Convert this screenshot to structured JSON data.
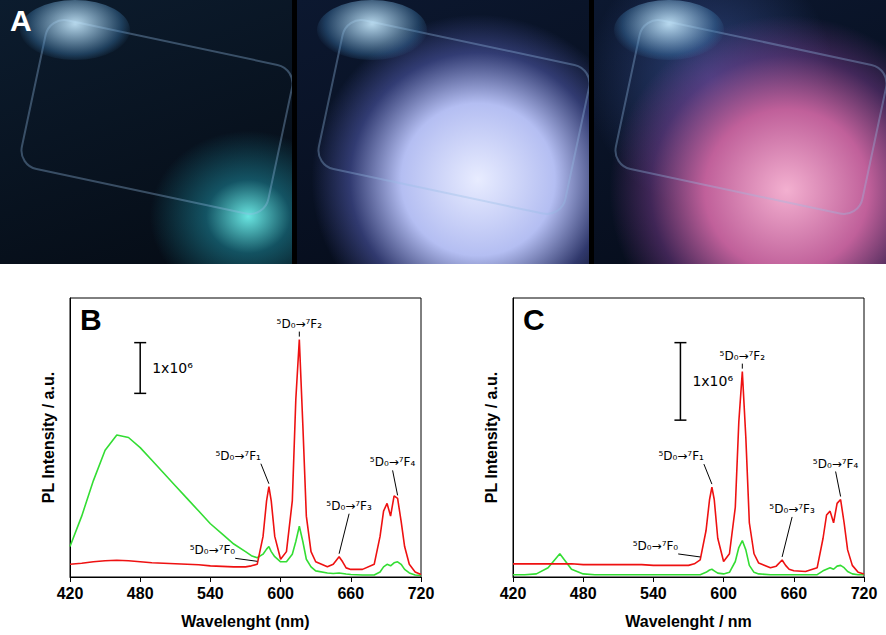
{
  "panel_a": {
    "label": "A"
  },
  "chart_data": [
    {
      "panel": "B",
      "type": "line",
      "x": [
        420,
        430,
        440,
        450,
        460,
        470,
        480,
        490,
        500,
        510,
        520,
        530,
        540,
        550,
        560,
        570,
        575,
        580,
        585,
        588,
        590,
        592,
        595,
        600,
        605,
        610,
        613,
        616,
        619,
        622,
        626,
        630,
        640,
        645,
        650,
        653,
        656,
        660,
        670,
        680,
        685,
        688,
        691,
        694,
        697,
        700,
        703,
        706,
        710,
        715,
        720
      ],
      "series": [
        {
          "color": "#33dd33",
          "values": [
            600000,
            1200000,
            1900000,
            2500000,
            2800000,
            2750000,
            2550000,
            2300000,
            2050000,
            1800000,
            1550000,
            1300000,
            1050000,
            850000,
            650000,
            500000,
            420000,
            380000,
            450000,
            550000,
            600000,
            500000,
            400000,
            300000,
            300000,
            450000,
            700000,
            1000000,
            700000,
            350000,
            200000,
            120000,
            80000,
            70000,
            80000,
            70000,
            60000,
            50000,
            40000,
            40000,
            100000,
            200000,
            250000,
            220000,
            280000,
            300000,
            250000,
            150000,
            80000,
            40000,
            30000
          ]
        },
        {
          "color": "#ee1111",
          "values": [
            250000,
            270000,
            300000,
            320000,
            330000,
            320000,
            300000,
            280000,
            270000,
            260000,
            250000,
            240000,
            220000,
            210000,
            200000,
            200000,
            220000,
            250000,
            800000,
            1500000,
            1780000,
            1500000,
            800000,
            350000,
            500000,
            1500000,
            3500000,
            4680000,
            3000000,
            1200000,
            500000,
            300000,
            200000,
            250000,
            400000,
            300000,
            180000,
            150000,
            150000,
            250000,
            800000,
            1300000,
            1450000,
            1200000,
            1600000,
            1550000,
            1100000,
            600000,
            250000,
            100000,
            50000
          ]
        }
      ],
      "xlim": [
        420,
        720
      ],
      "xticks": [
        420,
        480,
        540,
        600,
        660,
        720
      ],
      "ylim": [
        0,
        5500000
      ],
      "xlabel": "Wavelenght (nm)",
      "ylabel": "PL Intensity / a.u.",
      "tick_labels": "x",
      "grid": false,
      "scale_bar": {
        "label": "1x10⁶",
        "value": 1000000
      },
      "annotations": [
        {
          "text": "⁵D₀→⁷F₀",
          "x": 580,
          "y": 250000
        },
        {
          "text": "⁵D₀→⁷F₁",
          "x": 590,
          "y": 1780000
        },
        {
          "text": "⁵D₀→⁷F₂",
          "x": 616,
          "y": 4680000
        },
        {
          "text": "⁵D₀→⁷F₃",
          "x": 650,
          "y": 400000
        },
        {
          "text": "⁵D₀→⁷F₄",
          "x": 700,
          "y": 1550000
        }
      ]
    },
    {
      "panel": "C",
      "type": "line",
      "x": [
        420,
        430,
        440,
        450,
        460,
        470,
        480,
        490,
        500,
        510,
        520,
        530,
        540,
        550,
        560,
        570,
        575,
        580,
        585,
        588,
        590,
        592,
        595,
        600,
        605,
        610,
        613,
        616,
        619,
        622,
        626,
        630,
        640,
        645,
        650,
        653,
        656,
        660,
        670,
        680,
        685,
        688,
        691,
        694,
        697,
        700,
        703,
        706,
        710,
        715,
        720
      ],
      "series": [
        {
          "color": "#33dd33",
          "values": [
            30000,
            30000,
            40000,
            120000,
            300000,
            100000,
            40000,
            30000,
            30000,
            30000,
            30000,
            30000,
            30000,
            30000,
            30000,
            30000,
            30000,
            30000,
            60000,
            90000,
            100000,
            80000,
            50000,
            40000,
            60000,
            200000,
            380000,
            470000,
            350000,
            150000,
            60000,
            40000,
            30000,
            30000,
            30000,
            30000,
            30000,
            30000,
            30000,
            30000,
            80000,
            100000,
            120000,
            100000,
            140000,
            150000,
            120000,
            70000,
            40000,
            30000,
            30000
          ]
        },
        {
          "color": "#ee1111",
          "values": [
            170000,
            170000,
            170000,
            170000,
            170000,
            170000,
            160000,
            160000,
            160000,
            160000,
            160000,
            160000,
            150000,
            150000,
            150000,
            150000,
            170000,
            220000,
            600000,
            1000000,
            1160000,
            1000000,
            500000,
            200000,
            300000,
            900000,
            2000000,
            2650000,
            1800000,
            700000,
            300000,
            180000,
            120000,
            140000,
            220000,
            150000,
            100000,
            80000,
            70000,
            120000,
            500000,
            800000,
            850000,
            700000,
            950000,
            1000000,
            700000,
            350000,
            150000,
            60000,
            40000
          ]
        }
      ],
      "xlim": [
        420,
        720
      ],
      "xticks": [
        420,
        480,
        540,
        600,
        660,
        720
      ],
      "ylim": [
        0,
        3600000
      ],
      "xlabel": "Wavelenght / nm",
      "ylabel": "PL Intensity / a.u.",
      "tick_labels": "x",
      "grid": false,
      "scale_bar": {
        "label": "1x10⁶",
        "value": 1000000
      },
      "annotations": [
        {
          "text": "⁵D₀→⁷F₀",
          "x": 580,
          "y": 220000
        },
        {
          "text": "⁵D₀→⁷F₁",
          "x": 590,
          "y": 1160000
        },
        {
          "text": "⁵D₀→⁷F₂",
          "x": 616,
          "y": 2650000
        },
        {
          "text": "⁵D₀→⁷F₃",
          "x": 650,
          "y": 220000
        },
        {
          "text": "⁵D₀→⁷F₄",
          "x": 700,
          "y": 1000000
        }
      ]
    }
  ]
}
